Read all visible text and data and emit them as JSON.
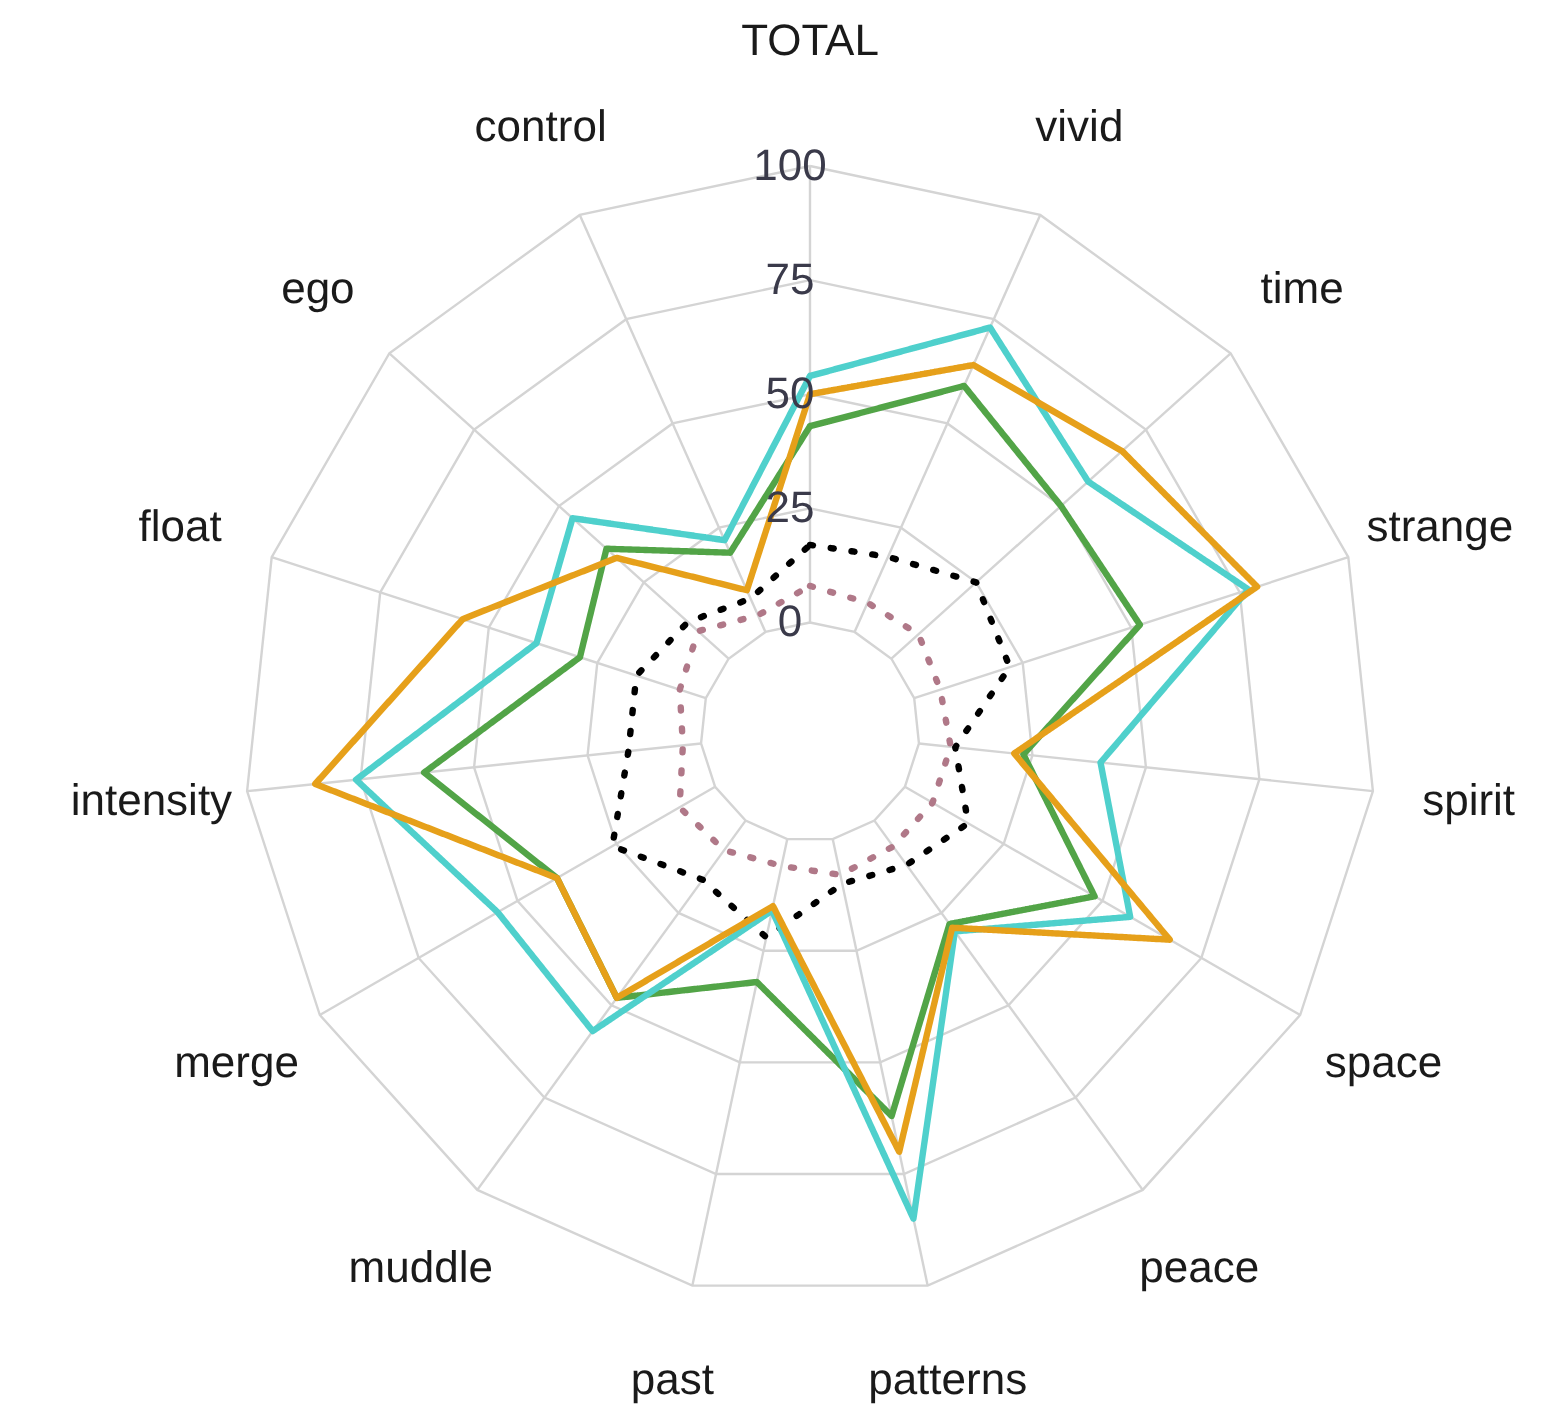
{
  "chart_data": {
    "type": "radar",
    "categories": [
      "TOTAL",
      "vivid",
      "time",
      "strange",
      "spirit",
      "space",
      "peace",
      "patterns",
      "past",
      "muddle",
      "merge",
      "intensity",
      "float",
      "ego",
      "control"
    ],
    "ylim": [
      -24,
      100
    ],
    "yticks": [
      0,
      25,
      50,
      75,
      100
    ],
    "grid": true,
    "legend": false,
    "marker": "none",
    "series": [
      {
        "color": "#000000",
        "line_style": "dotted",
        "values": [
          17,
          18,
          25,
          22,
          8,
          16,
          12,
          10,
          22,
          16,
          26,
          16,
          16,
          12,
          8
        ]
      },
      {
        "color": "#b07888",
        "line_style": "dotted",
        "values": [
          8,
          7,
          8,
          6,
          7,
          7,
          7,
          8,
          6,
          8,
          9,
          4,
          6,
          9,
          4
        ]
      },
      {
        "color": "#52a447",
        "line_style": "solid",
        "values": [
          43,
          59,
          50,
          52,
          23,
          48,
          28,
          62,
          32,
          48,
          40,
          61,
          29,
          36,
          19
        ]
      },
      {
        "color": "#4fd0cc",
        "line_style": "solid",
        "values": [
          54,
          73,
          58,
          77,
          40,
          57,
          30,
          85,
          16,
          57,
          55,
          76,
          39,
          46,
          22
        ]
      },
      {
        "color": "#e6a01a",
        "line_style": "solid",
        "values": [
          50,
          64,
          68,
          79,
          21,
          67,
          29,
          70,
          15,
          48,
          40,
          85,
          56,
          33,
          10
        ]
      }
    ]
  }
}
